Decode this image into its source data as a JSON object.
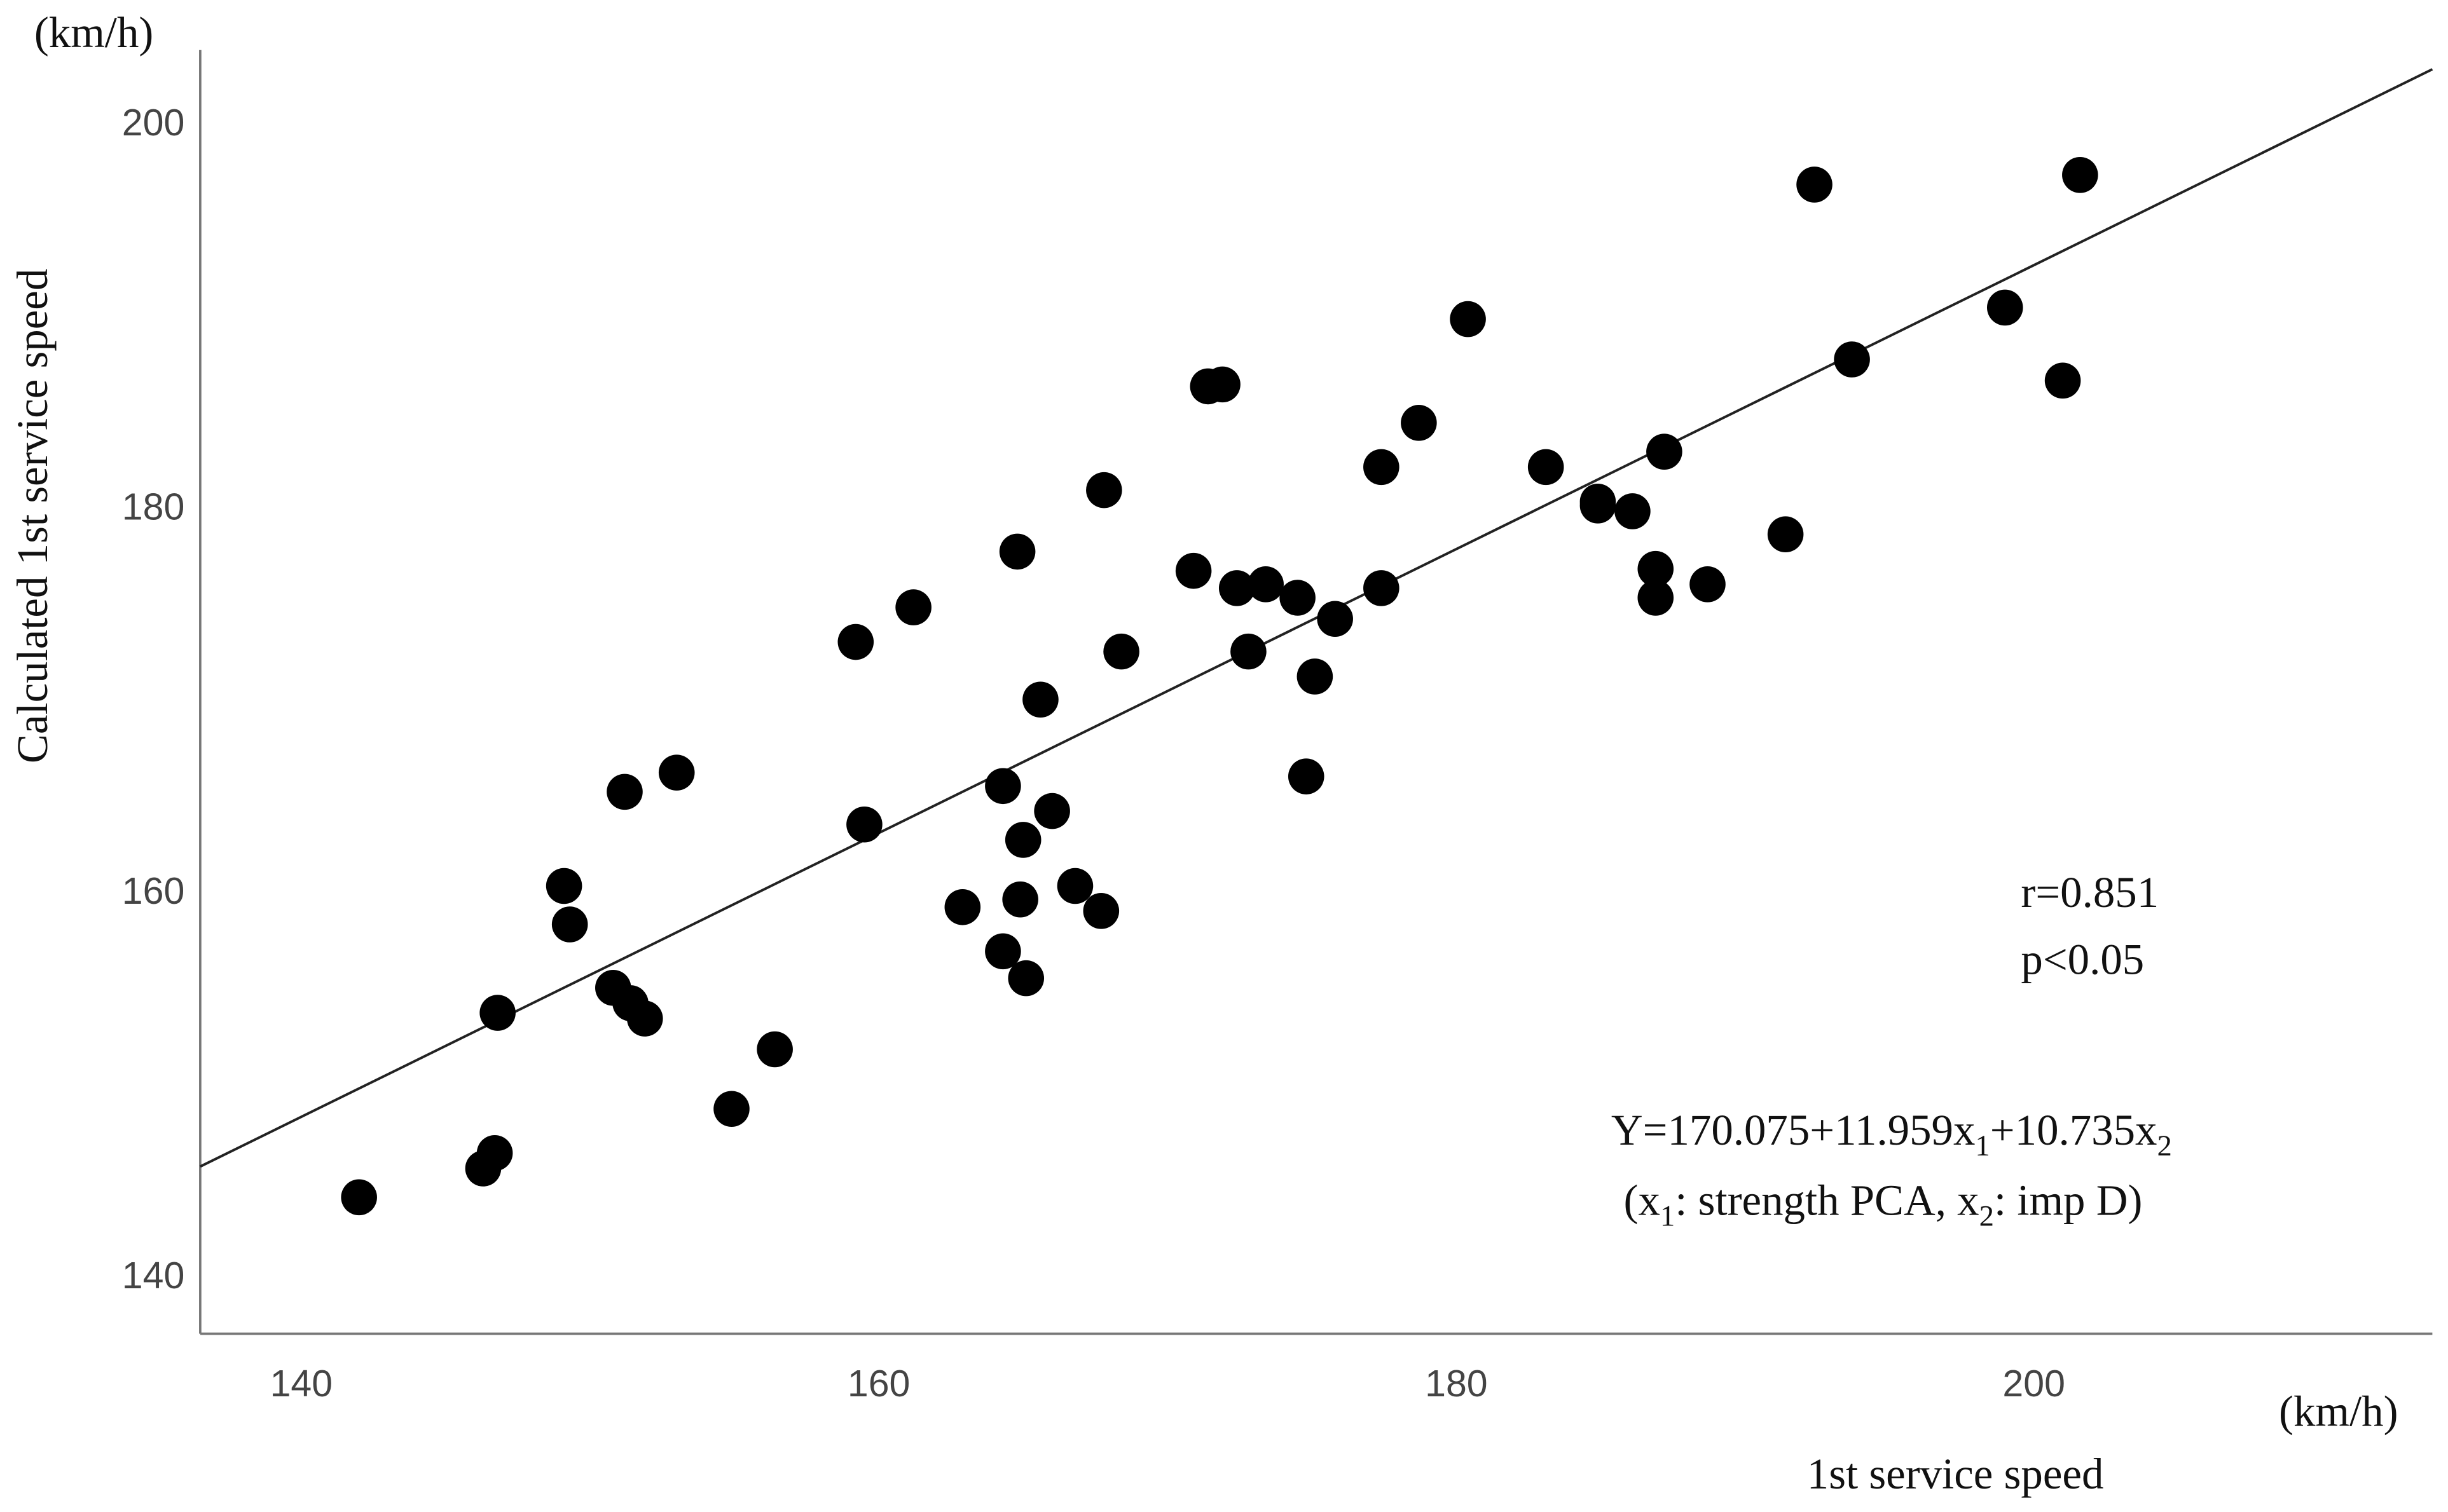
{
  "chart_data": {
    "type": "scatter",
    "y_unit": "(km/h)",
    "x_unit": "(km/h)",
    "xlabel": "1st service speed",
    "ylabel": "Calculated 1st service speed",
    "annotations": [
      "r=0.851",
      "p<0.05"
    ],
    "equation": [
      "Y=170.075+11.959x",
      "1",
      "+10.735x",
      "2"
    ],
    "equation_note": [
      "(x",
      "1",
      ": strength PCA, x",
      "2",
      ": imp D)"
    ],
    "color": "#000000",
    "xlim": [
      136.5,
      213.8
    ],
    "ylim": [
      136.9,
      203.7
    ],
    "xticks": [
      140,
      160,
      180,
      200
    ],
    "yticks": [
      140,
      160,
      180,
      200
    ],
    "x": [
      142.0,
      146.3,
      146.7,
      146.8,
      149.1,
      149.3,
      150.8,
      151.4,
      151.9,
      151.2,
      153.0,
      154.9,
      156.4,
      159.2,
      159.5,
      161.2,
      162.9,
      164.3,
      164.3,
      164.8,
      165.0,
      164.9,
      165.1,
      165.6,
      166.0,
      166.8,
      167.7,
      167.8,
      168.4,
      170.9,
      171.4,
      171.9,
      172.4,
      172.8,
      173.4,
      174.5,
      175.1,
      174.8,
      175.8,
      177.4,
      177.4,
      178.7,
      180.4,
      183.1,
      184.9,
      184.9,
      186.1,
      186.9,
      186.9,
      187.2,
      188.7,
      191.4,
      192.4,
      193.7,
      199.0,
      201.0,
      201.6
    ],
    "values": [
      144.0,
      145.5,
      146.3,
      153.6,
      160.2,
      158.2,
      154.9,
      154.1,
      153.3,
      165.1,
      166.1,
      148.6,
      151.7,
      172.9,
      163.4,
      174.7,
      159.1,
      165.4,
      156.8,
      177.6,
      162.6,
      159.5,
      155.4,
      169.9,
      164.1,
      160.2,
      158.9,
      180.8,
      172.4,
      176.6,
      186.2,
      186.3,
      175.7,
      172.4,
      175.9,
      175.2,
      171.1,
      165.9,
      174.1,
      175.7,
      182.0,
      184.3,
      189.7,
      182.0,
      180.2,
      180.0,
      179.7,
      176.7,
      175.2,
      182.8,
      175.9,
      178.5,
      196.7,
      187.6,
      190.3,
      186.5,
      197.2
    ],
    "fit_line": {
      "x": [
        136.5,
        213.8
      ],
      "y": [
        145.6,
        202.7
      ],
      "color": "#222222"
    }
  }
}
